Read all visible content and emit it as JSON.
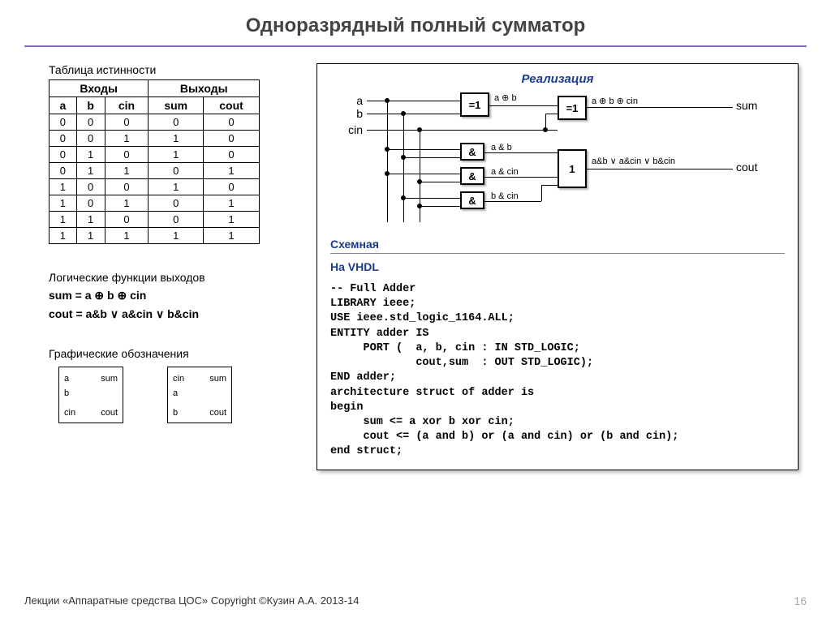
{
  "title": "Одноразрядный полный сумматор",
  "truth_label": "Таблица истинности",
  "truth": {
    "group_headers": [
      "Входы",
      "Выходы"
    ],
    "cols": [
      "a",
      "b",
      "cin",
      "sum",
      "cout"
    ],
    "rows": [
      [
        "0",
        "0",
        "0",
        "0",
        "0"
      ],
      [
        "0",
        "0",
        "1",
        "1",
        "0"
      ],
      [
        "0",
        "1",
        "0",
        "1",
        "0"
      ],
      [
        "0",
        "1",
        "1",
        "0",
        "1"
      ],
      [
        "1",
        "0",
        "0",
        "1",
        "0"
      ],
      [
        "1",
        "0",
        "1",
        "0",
        "1"
      ],
      [
        "1",
        "1",
        "0",
        "0",
        "1"
      ],
      [
        "1",
        "1",
        "1",
        "1",
        "1"
      ]
    ]
  },
  "logic": {
    "label": "Логические функции выходов",
    "sum": "sum = a ⊕ b ⊕ cin",
    "cout": "cout = a&b ∨ a&cin ∨ b&cin"
  },
  "symbols": {
    "label": "Графические обозначения",
    "box1": {
      "left": [
        "a",
        "b",
        "cin"
      ],
      "right": [
        "sum",
        "",
        "cout"
      ]
    },
    "box2": {
      "left": [
        "cin",
        "a",
        "b"
      ],
      "right": [
        "sum",
        "",
        "cout"
      ]
    }
  },
  "realization": {
    "title": "Реализация",
    "schematic_label": "Схемная",
    "vhdl_label": "На VHDL",
    "inputs": [
      "a",
      "b",
      "cin"
    ],
    "outputs": [
      "sum",
      "cout"
    ],
    "gates": {
      "xor1": {
        "label": "=1",
        "sig": "a ⊕ b"
      },
      "xor2": {
        "label": "=1",
        "sig": "a ⊕ b ⊕ cin"
      },
      "and1": {
        "label": "&",
        "sig": "a & b"
      },
      "and2": {
        "label": "&",
        "sig": "a & cin"
      },
      "and3": {
        "label": "&",
        "sig": "b & cin"
      },
      "or1": {
        "label": "1",
        "sig": "a&b ∨ a&cin ∨ b&cin"
      }
    },
    "colors": {
      "gate_border": "#000000",
      "wire": "#000000",
      "title": "#1a3a8a"
    }
  },
  "vhdl": "-- Full Adder\nLIBRARY ieee;\nUSE ieee.std_logic_1164.ALL;\nENTITY adder IS\n     PORT (  a, b, cin : IN STD_LOGIC;\n             cout,sum  : OUT STD_LOGIC);\nEND adder;\narchitecture struct of adder is\nbegin\n     sum <= a xor b xor cin;\n     cout <= (a and b) or (a and cin) or (b and cin);\nend struct;",
  "footer": {
    "text": "Лекции «Аппаратные средства ЦОС» Copyright ©Кузин А.А. 2013-14",
    "page": "16"
  }
}
